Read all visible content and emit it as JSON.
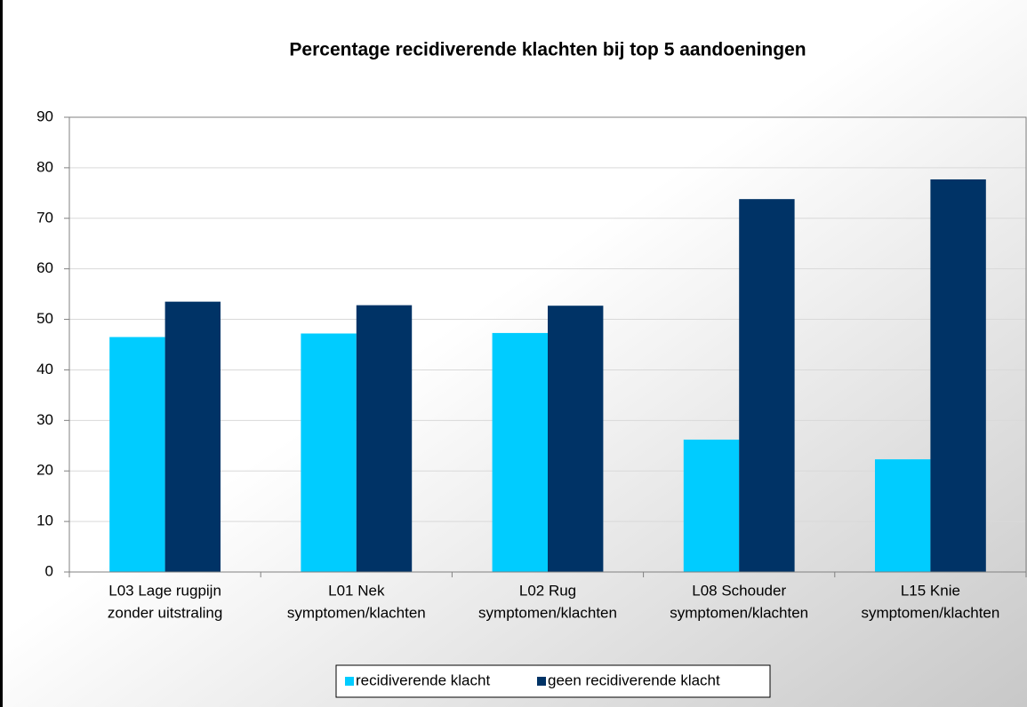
{
  "chart_data": {
    "type": "bar",
    "title": "Percentage recidiverende klachten bij top 5 aandoeningen",
    "categories": [
      [
        "L03 Lage rugpijn",
        "zonder uitstraling"
      ],
      [
        "L01 Nek",
        "symptomen/klachten"
      ],
      [
        "L02 Rug",
        "symptomen/klachten"
      ],
      [
        "L08 Schouder",
        "symptomen/klachten"
      ],
      [
        "L15 Knie",
        "symptomen/klachten"
      ]
    ],
    "series": [
      {
        "name": "recidiverende klacht",
        "color": "#00ccff",
        "values": [
          46.5,
          47.2,
          47.3,
          26.2,
          22.3
        ]
      },
      {
        "name": "geen recidiverende klacht",
        "color": "#003366",
        "values": [
          53.5,
          52.8,
          52.7,
          73.8,
          77.7
        ]
      }
    ],
    "ylim": [
      0,
      90
    ],
    "yticks": [
      0,
      10,
      20,
      30,
      40,
      50,
      60,
      70,
      80,
      90
    ],
    "grid": true,
    "legend": "bottom"
  }
}
